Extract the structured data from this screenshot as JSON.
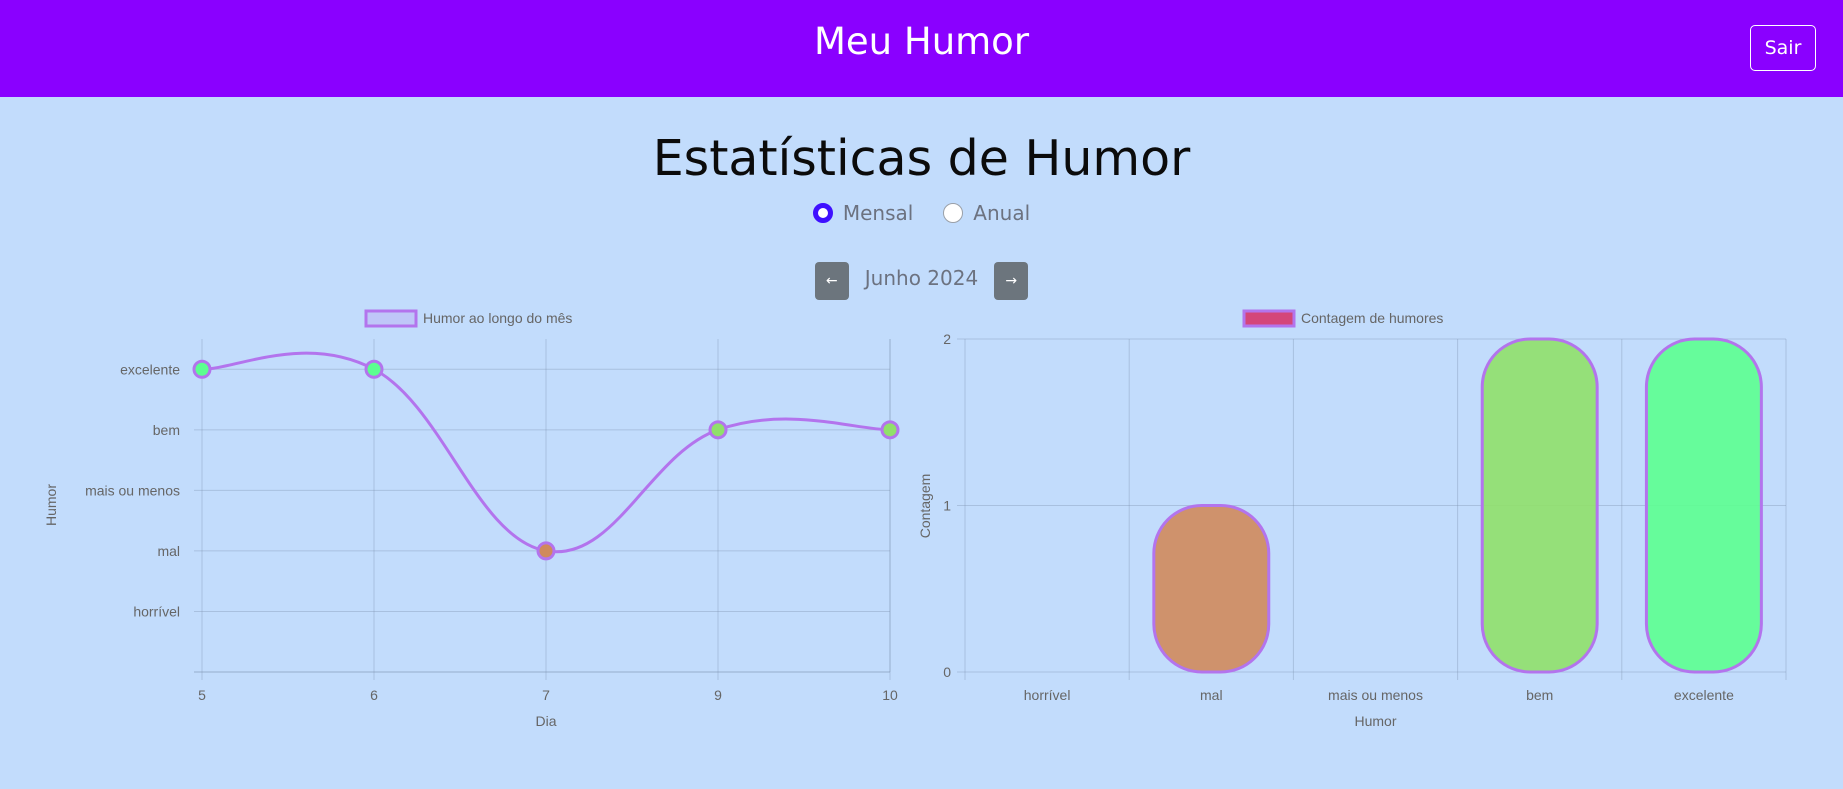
{
  "navbar": {
    "title": "Meu Humor",
    "logout_label": "Sair"
  },
  "page": {
    "title": "Estatísticas de Humor"
  },
  "period": {
    "options": [
      "Mensal",
      "Anual"
    ],
    "selected": "Mensal"
  },
  "month_nav": {
    "prev_icon": "arrow-left-icon",
    "label": "Junho 2024",
    "next_icon": "arrow-right-icon"
  },
  "chart_data": [
    {
      "type": "line",
      "legend": "Humor ao longo do mês",
      "legend_position": "top",
      "x": [
        "5",
        "6",
        "7",
        "9",
        "10"
      ],
      "xlabel": "Dia",
      "ylabel": "Humor",
      "y_categories": [
        "horrível",
        "mal",
        "mais ou menos",
        "bem",
        "excelente"
      ],
      "values": [
        5,
        5,
        2,
        4,
        4
      ],
      "ylim": [
        0,
        5.5
      ],
      "line_color": "#b374ed",
      "point_colors": [
        "#5cff90",
        "#5cff90",
        "#d08a5c",
        "#90e06a",
        "#90e06a"
      ],
      "grid": true,
      "smooth": true
    },
    {
      "type": "bar",
      "legend": "Contagem de humores",
      "legend_position": "top",
      "categories": [
        "horrível",
        "mal",
        "mais ou menos",
        "bem",
        "excelente"
      ],
      "values": [
        0,
        1,
        0,
        2,
        2
      ],
      "xlabel": "Humor",
      "ylabel": "Contagem",
      "ylim": [
        0,
        2
      ],
      "yticks": [
        "0",
        "1",
        "2"
      ],
      "bar_colors": [
        "#ff5a5a",
        "#d08a5c",
        "#d9d95c",
        "#90e06a",
        "#5cff90"
      ],
      "border_color": "#b374ed",
      "legend_color": "#d4467a",
      "grid": true
    }
  ],
  "colors": {
    "navbar": "#8a00ff",
    "background": "#c2dcfc",
    "radio_accent": "#3f10ff",
    "nav_button": "#6c757d"
  }
}
